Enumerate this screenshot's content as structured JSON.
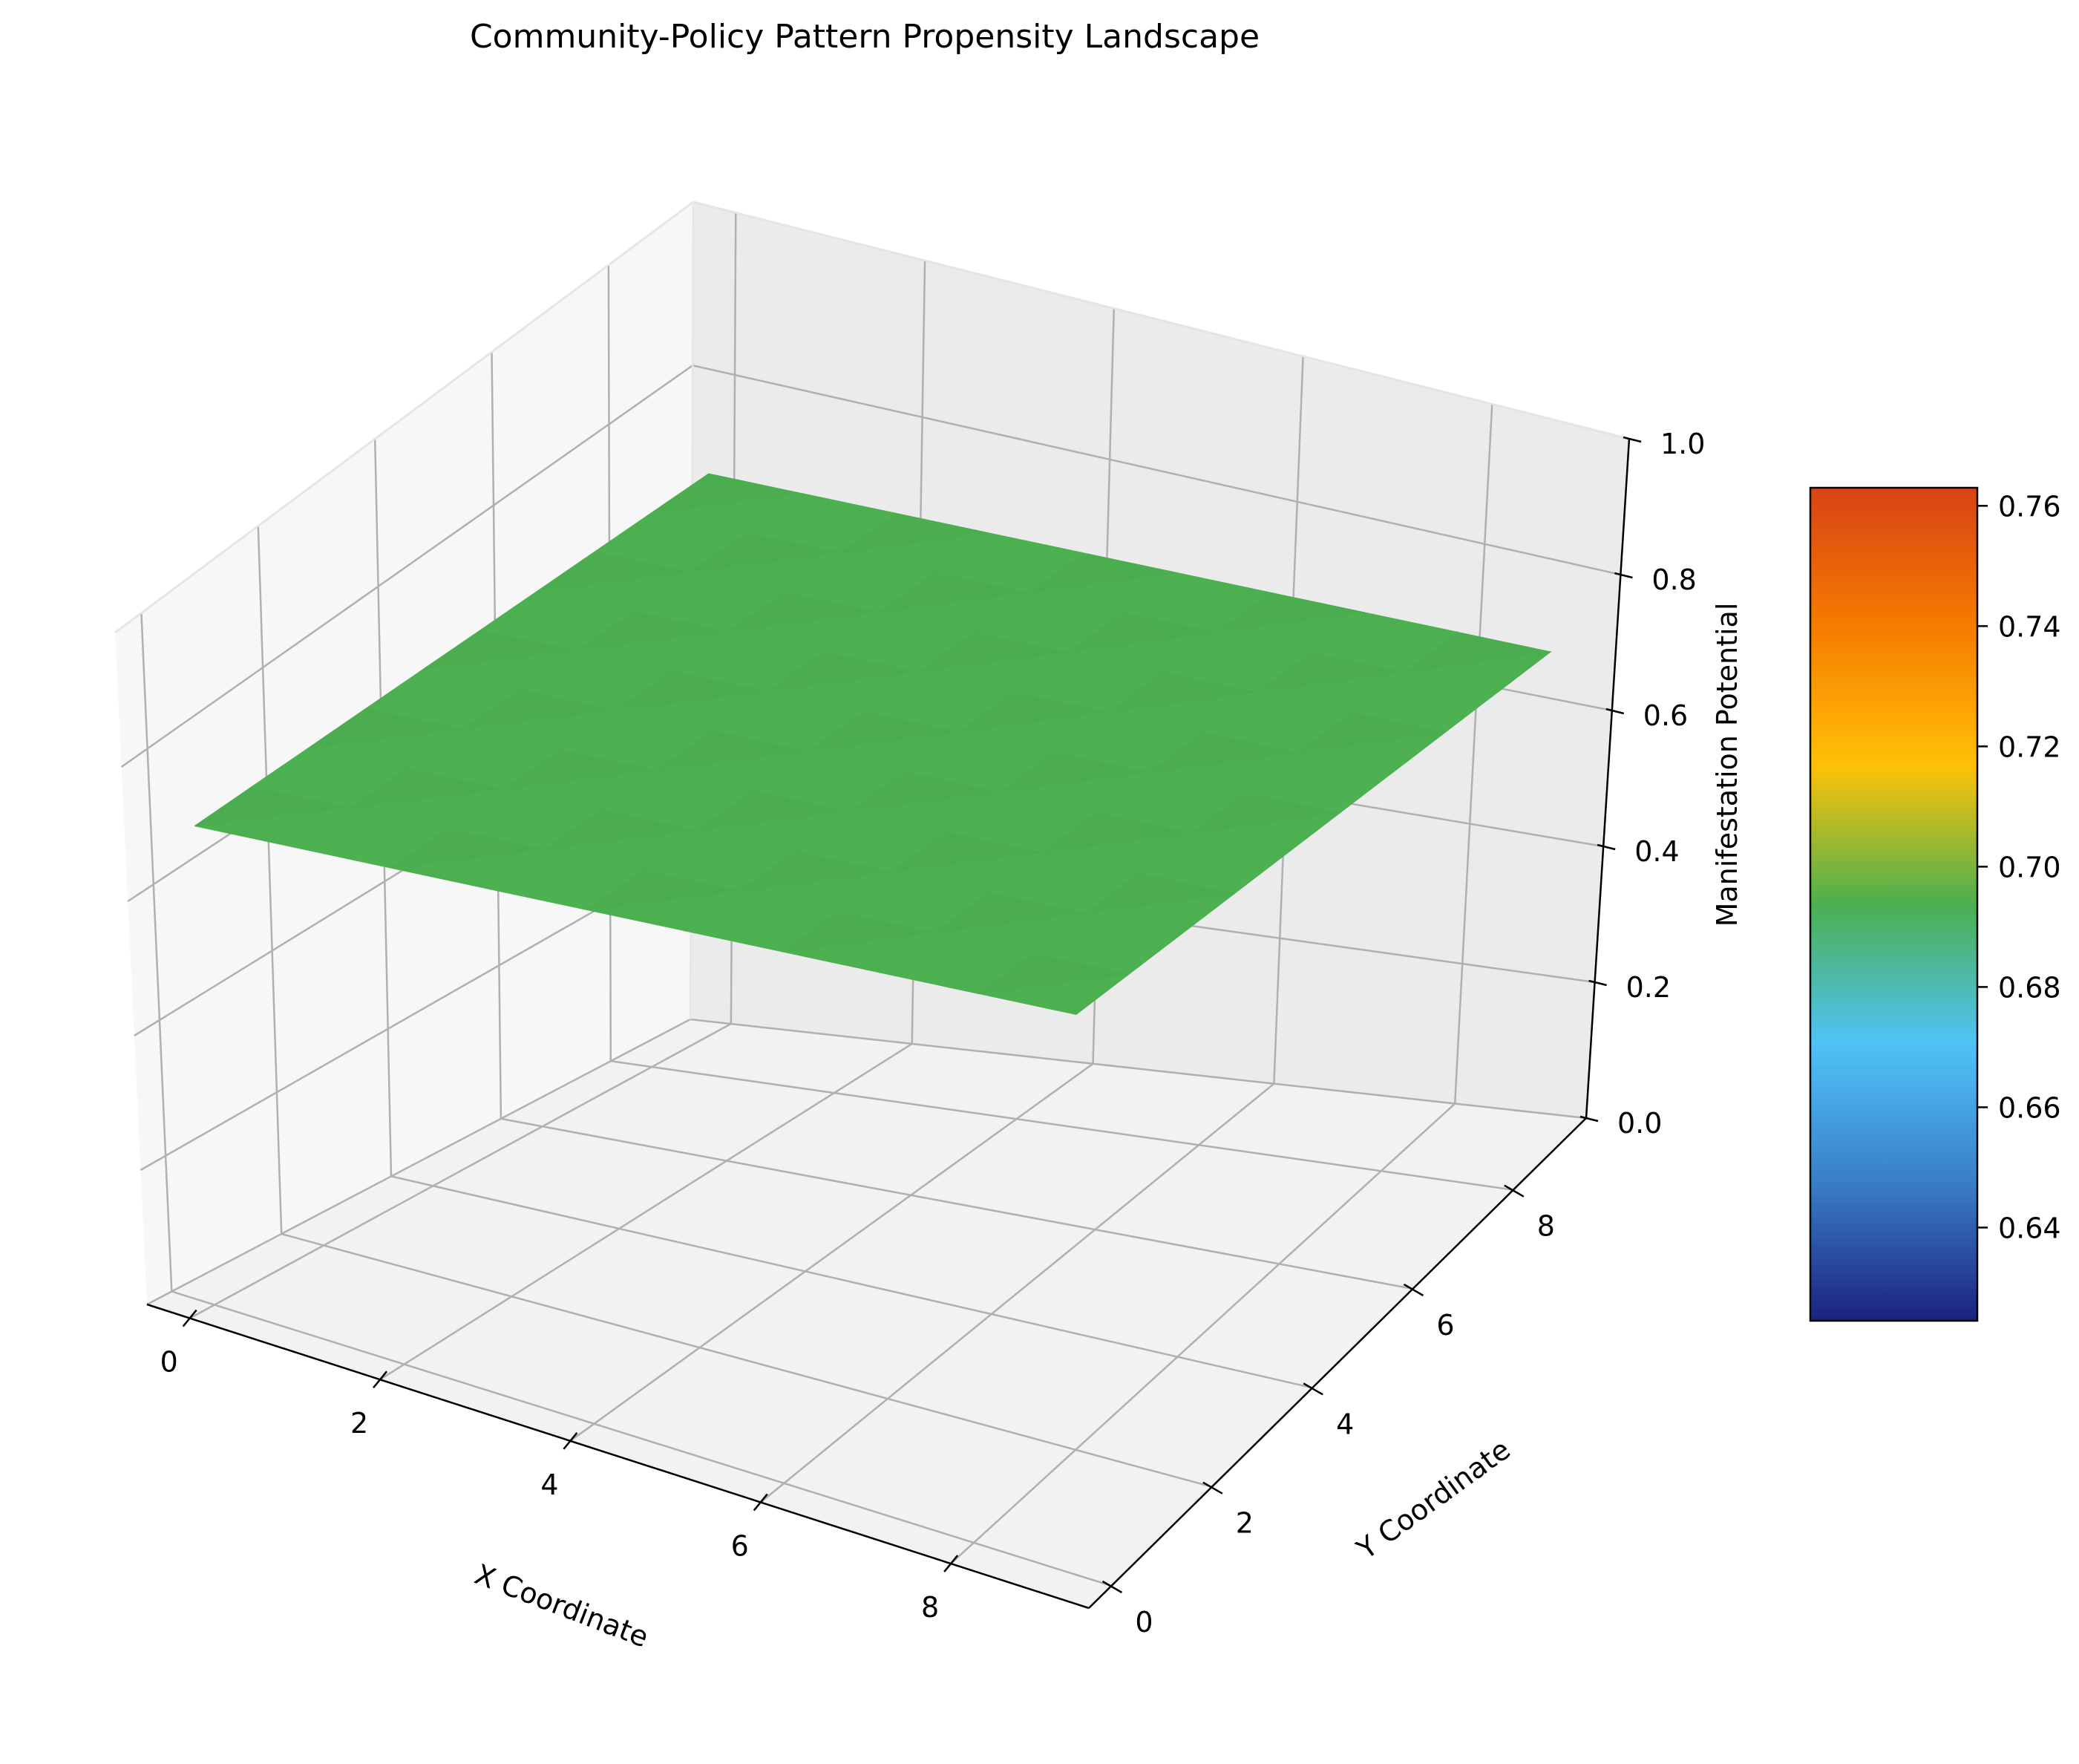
{
  "chart_data": {
    "type": "surface3d",
    "title": "Community-Policy Pattern Propensity Landscape",
    "xlabel": "X Coordinate",
    "ylabel": "Y Coordinate",
    "zlabel": "Manifestation Potential",
    "x": [
      0,
      1,
      2,
      3,
      4,
      5,
      6,
      7,
      8,
      9
    ],
    "y": [
      0,
      1,
      2,
      3,
      4,
      5,
      6,
      7,
      8,
      9
    ],
    "z_value": 0.7,
    "xlim": [
      0,
      9
    ],
    "ylim": [
      0,
      9
    ],
    "zlim": [
      0,
      1
    ],
    "x_ticks": [
      "0",
      "2",
      "4",
      "6",
      "8"
    ],
    "y_ticks": [
      "0",
      "2",
      "4",
      "6",
      "8"
    ],
    "z_ticks": [
      "0.0",
      "0.2",
      "0.4",
      "0.6",
      "0.8",
      "1.0"
    ],
    "surface_color": "#4caf50",
    "grid": true,
    "colorbar": {
      "range": [
        0.6245,
        0.763
      ],
      "ticks": [
        "0.64",
        "0.66",
        "0.68",
        "0.70",
        "0.72",
        "0.74",
        "0.76"
      ],
      "colormap": [
        "#1a237e",
        "#3a7ec8",
        "#4fc3f7",
        "#4caf50",
        "#ffc107",
        "#f57c00",
        "#d84315"
      ],
      "position": "right"
    }
  }
}
